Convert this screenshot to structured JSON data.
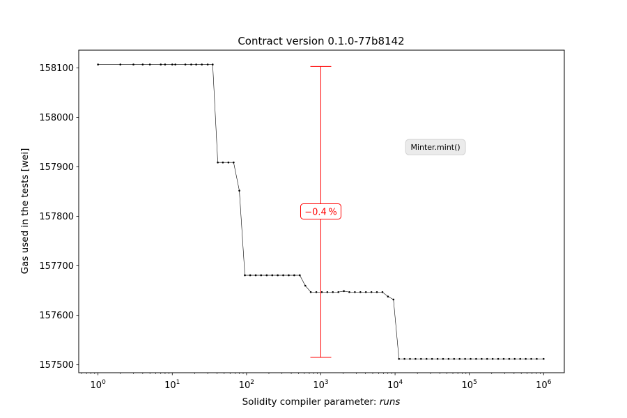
{
  "chart_data": {
    "type": "line",
    "title": "Contract version 0.1.0-77b8142",
    "xlabel_prefix": "Solidity compiler parameter: ",
    "xlabel_var": "runs",
    "ylabel": "Gas used in the tests [wei]",
    "x_scale": "log",
    "xlim": [
      0.55,
      1900000
    ],
    "ylim": [
      157484,
      158136
    ],
    "grid": false,
    "x_ticks": [
      {
        "value": 1,
        "label_base": "10",
        "label_exp": "0"
      },
      {
        "value": 10,
        "label_base": "10",
        "label_exp": "1"
      },
      {
        "value": 100,
        "label_base": "10",
        "label_exp": "2"
      },
      {
        "value": 1000,
        "label_base": "10",
        "label_exp": "3"
      },
      {
        "value": 10000,
        "label_base": "10",
        "label_exp": "4"
      },
      {
        "value": 100000,
        "label_base": "10",
        "label_exp": "5"
      },
      {
        "value": 1000000,
        "label_base": "10",
        "label_exp": "6"
      }
    ],
    "y_ticks": [
      157500,
      157600,
      157700,
      157800,
      157900,
      158000,
      158100
    ],
    "series": [
      {
        "color": "#000000",
        "x": [
          1,
          2,
          3,
          4,
          5,
          7,
          8,
          10,
          11,
          15,
          18,
          21,
          25,
          30,
          35,
          41,
          48,
          57,
          67,
          80,
          95,
          112,
          133,
          157,
          187,
          222,
          263,
          312,
          370,
          439,
          521,
          618,
          733,
          870,
          1032,
          1224,
          1452,
          1723,
          2044,
          2424,
          2876,
          3412,
          4048,
          4802,
          5697,
          6759,
          8018,
          9512,
          11285,
          13388,
          15883,
          18843,
          22354,
          26519,
          31461,
          37323,
          44278,
          52529,
          62318,
          73930,
          87706,
          104050,
          123438,
          146440,
          173728,
          206100,
          244505,
          290068,
          344120,
          408244,
          484317,
          574566,
          681633,
          808652,
          1000000
        ],
        "y": [
          158107,
          158107,
          158107,
          158107,
          158107,
          158107,
          158107,
          158107,
          158107,
          158107,
          158107,
          158107,
          158107,
          158107,
          158107,
          157909,
          157909,
          157909,
          157909,
          157852,
          157681,
          157681,
          157681,
          157681,
          157681,
          157681,
          157681,
          157681,
          157681,
          157681,
          157681,
          157660,
          157647,
          157647,
          157647,
          157647,
          157647,
          157647,
          157649,
          157647,
          157647,
          157647,
          157647,
          157647,
          157647,
          157647,
          157638,
          157632,
          157512,
          157512,
          157512,
          157512,
          157512,
          157512,
          157512,
          157512,
          157512,
          157512,
          157512,
          157512,
          157512,
          157512,
          157512,
          157512,
          157512,
          157512,
          157512,
          157512,
          157512,
          157512,
          157512,
          157512,
          157512,
          157512,
          157512
        ]
      }
    ],
    "range_bar": {
      "x": 1000,
      "y_min": 157515,
      "y_max": 158103,
      "color": "#ff0000",
      "label": "−0.4 %",
      "label_y": 157810
    },
    "annotation": {
      "text": "Minter.mint()",
      "x": 35000,
      "y": 157940
    }
  }
}
